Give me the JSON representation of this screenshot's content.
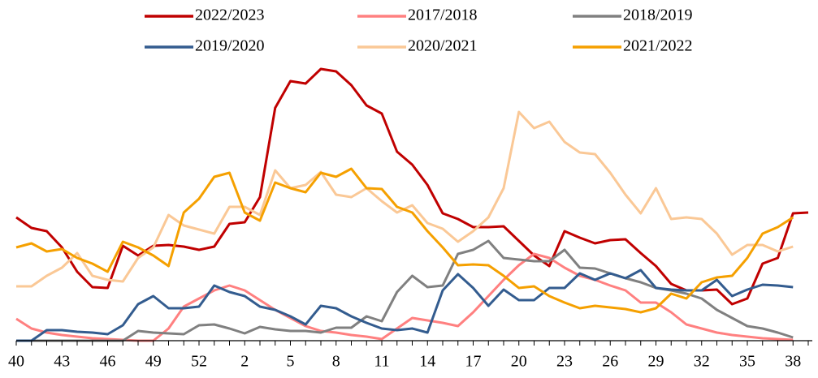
{
  "chart_data": {
    "type": "line",
    "categories": [
      "40",
      null,
      null,
      "43",
      null,
      null,
      "46",
      null,
      null,
      "49",
      null,
      null,
      "52",
      null,
      null,
      "2",
      null,
      null,
      "5",
      null,
      null,
      "8",
      null,
      null,
      "11",
      null,
      null,
      "14",
      null,
      null,
      "17",
      null,
      null,
      "20",
      null,
      null,
      "23",
      null,
      null,
      "26",
      null,
      null,
      "29",
      null,
      null,
      "32",
      null,
      null,
      "35",
      null,
      null,
      "38",
      null
    ],
    "ylim": [
      0,
      340
    ],
    "legend": "top",
    "series": [
      {
        "name": "2022/2023",
        "color": "#c00000",
        "values": [
          152,
          139,
          135,
          115,
          85,
          66,
          65,
          117,
          105,
          117,
          118,
          116,
          112,
          116,
          144,
          146,
          177,
          287,
          320,
          317,
          335,
          332,
          315,
          290,
          280,
          233,
          217,
          192,
          157,
          150,
          140,
          140,
          141,
          123,
          105,
          92,
          135,
          127,
          120,
          124,
          125,
          108,
          92,
          70,
          62,
          62,
          63,
          45,
          52,
          95,
          102,
          157,
          158
        ]
      },
      {
        "name": "2017/2018",
        "color": "#ff8080",
        "values": [
          27,
          15,
          10,
          7,
          5,
          3,
          2,
          1,
          0,
          0,
          15,
          42,
          52,
          62,
          68,
          62,
          50,
          38,
          28,
          18,
          12,
          10,
          7,
          5,
          2,
          15,
          28,
          25,
          22,
          18,
          35,
          55,
          75,
          93,
          107,
          102,
          90,
          80,
          75,
          68,
          62,
          47,
          47,
          35,
          20,
          15,
          10,
          7,
          5,
          3,
          2,
          1,
          null
        ]
      },
      {
        "name": "2018/2019",
        "color": "#808080",
        "values": [
          0,
          0,
          0,
          0,
          0,
          0,
          0,
          0,
          12,
          10,
          9,
          8,
          19,
          20,
          15,
          9,
          17,
          14,
          12,
          12,
          10,
          16,
          16,
          30,
          24,
          60,
          80,
          66,
          68,
          107,
          112,
          123,
          102,
          100,
          98,
          98,
          112,
          90,
          89,
          83,
          77,
          72,
          65,
          62,
          58,
          52,
          38,
          28,
          18,
          15,
          10,
          4,
          null
        ]
      },
      {
        "name": "2019/2020",
        "color": "#335c8f",
        "values": [
          0,
          0,
          13,
          13,
          11,
          10,
          8,
          19,
          45,
          55,
          40,
          40,
          42,
          68,
          60,
          55,
          42,
          38,
          30,
          20,
          43,
          40,
          30,
          22,
          15,
          13,
          15,
          10,
          62,
          82,
          65,
          43,
          63,
          50,
          50,
          65,
          65,
          83,
          75,
          83,
          77,
          87,
          65,
          63,
          62,
          62,
          75,
          55,
          63,
          69,
          68,
          66,
          null
        ]
      },
      {
        "name": "2020/2021",
        "color": "#fac896",
        "values": [
          67,
          67,
          80,
          90,
          108,
          80,
          75,
          73,
          102,
          115,
          155,
          142,
          137,
          132,
          165,
          165,
          155,
          210,
          188,
          192,
          208,
          180,
          177,
          188,
          172,
          158,
          167,
          145,
          138,
          122,
          135,
          152,
          188,
          282,
          262,
          270,
          245,
          232,
          230,
          207,
          180,
          157,
          188,
          150,
          152,
          150,
          132,
          106,
          118,
          118,
          110,
          116,
          null
        ]
      },
      {
        "name": "2021/2022",
        "color": "#f5a000",
        "values": [
          115,
          120,
          110,
          113,
          102,
          95,
          85,
          122,
          115,
          105,
          92,
          158,
          175,
          202,
          207,
          158,
          148,
          195,
          188,
          183,
          207,
          202,
          212,
          188,
          187,
          165,
          158,
          135,
          115,
          93,
          94,
          93,
          80,
          65,
          67,
          55,
          47,
          40,
          43,
          41,
          39,
          35,
          40,
          58,
          52,
          72,
          78,
          80,
          102,
          132,
          140,
          152,
          null
        ]
      }
    ]
  }
}
